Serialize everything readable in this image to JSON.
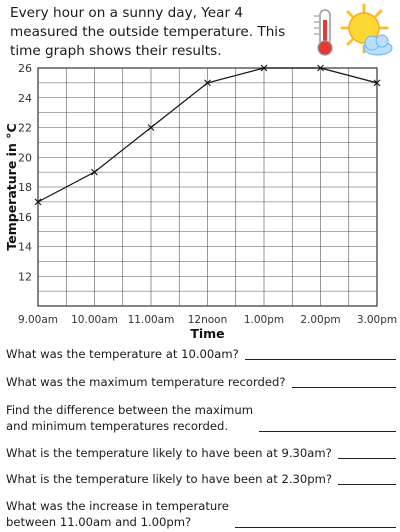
{
  "intro": "Every hour on a sunny day, Year 4 measured the outside temperature. This time graph shows their results.",
  "icons": {
    "thermometer": "thermometer-icon",
    "sun": "sun-cloud-icon"
  },
  "colors": {
    "grid": "#555555",
    "line": "#111111",
    "thermo_red": "#e53935",
    "sun": "#fbc02d",
    "cloud": "#90caf9"
  },
  "chart_data": {
    "type": "line",
    "title": "",
    "xlabel": "Time",
    "ylabel": "Temperature in °C",
    "categories": [
      "9.00am",
      "10.00am",
      "11.00am",
      "12noon",
      "1.00pm",
      "2.00pm",
      "3.00pm"
    ],
    "series": [
      {
        "values": [
          17,
          19,
          22,
          25,
          26,
          26,
          25
        ]
      }
    ],
    "ylim": [
      10,
      26
    ],
    "yticks": [
      "12",
      "14",
      "16",
      "18",
      "20",
      "22",
      "24",
      "26"
    ],
    "grid": true,
    "marker": "x"
  },
  "questions": [
    {
      "text": "What was the temperature at 10.00am?"
    },
    {
      "text": "What was the maximum temperature recorded?"
    },
    {
      "text": "Find the difference between the maximum\nand minimum temperatures recorded."
    },
    {
      "text": "What is the temperature likely to have been at 9.30am?"
    },
    {
      "text": "What is the temperature likely to have been at 2.30pm?"
    },
    {
      "text": "What was the increase in temperature\nbetween 11.00am and 1.00pm?"
    }
  ]
}
